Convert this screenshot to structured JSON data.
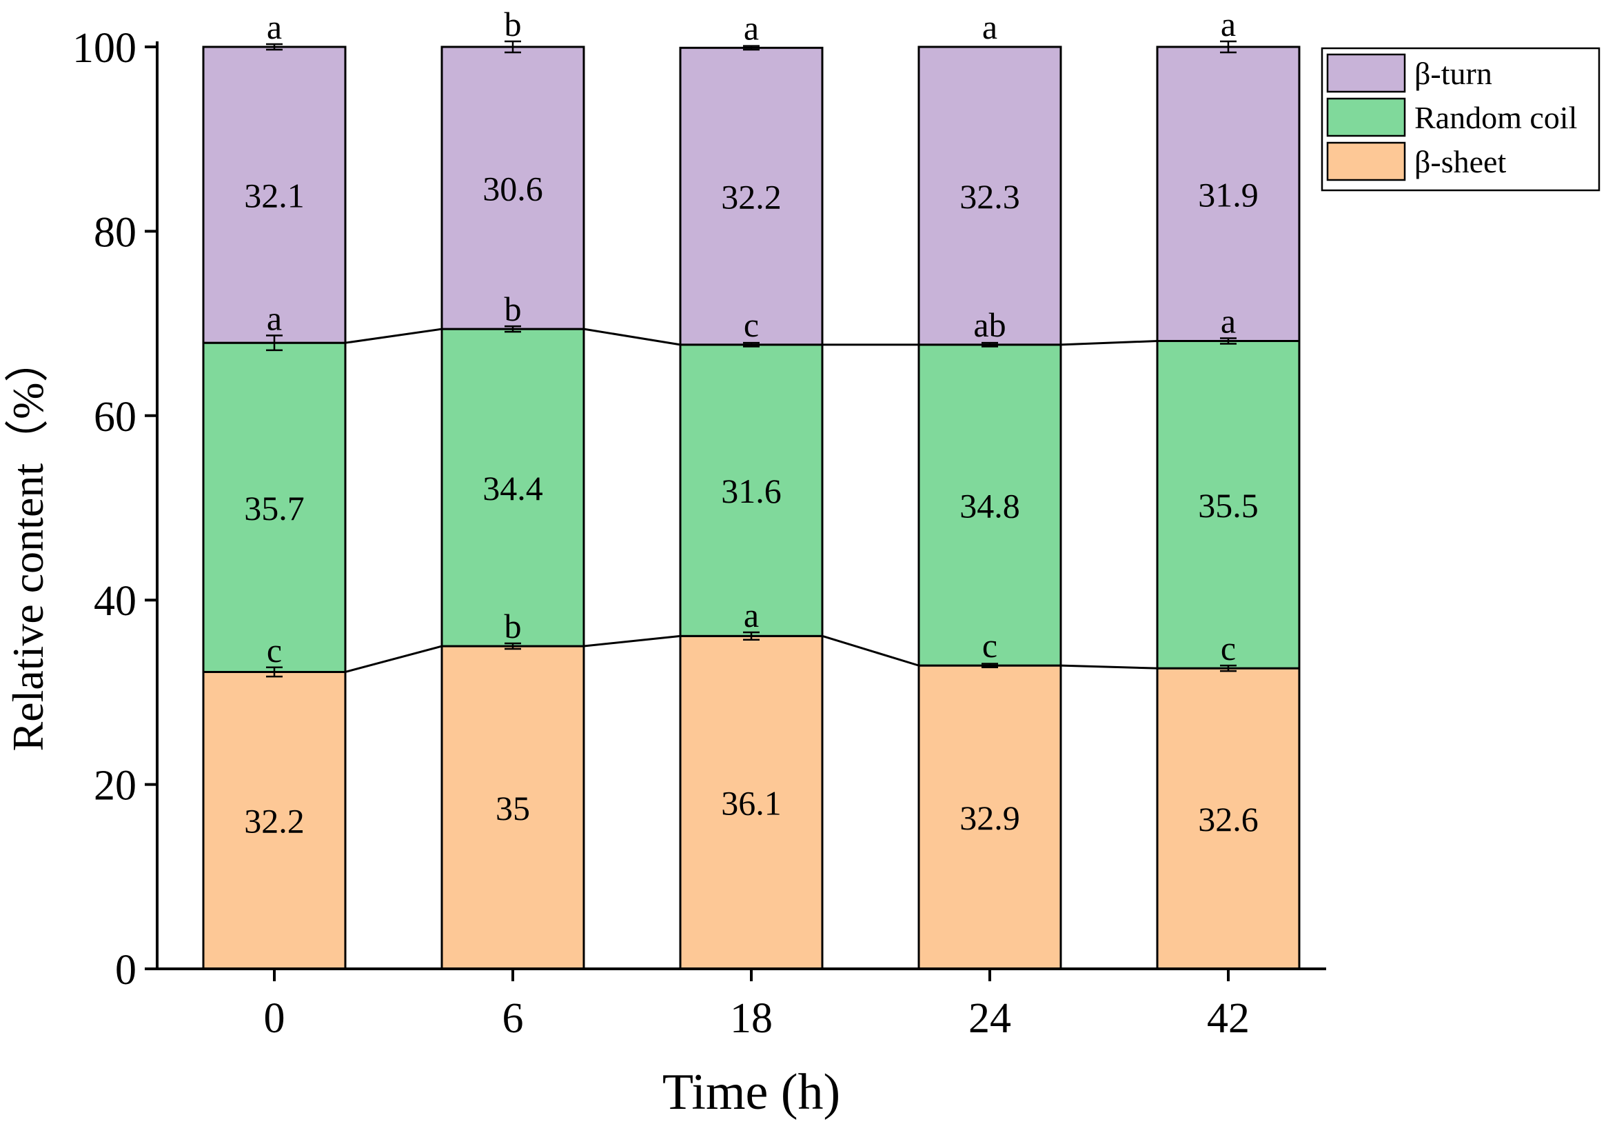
{
  "chart_data": {
    "type": "bar",
    "stacked": true,
    "xlabel": "Time (h)",
    "ylabel": "Relative content（%）",
    "ylim": [
      0,
      100
    ],
    "yticks": [
      0,
      20,
      40,
      60,
      80,
      100
    ],
    "categories": [
      "0",
      "6",
      "18",
      "24",
      "42"
    ],
    "series": [
      {
        "name": "β-sheet",
        "color": "#FDC896",
        "values": [
          32.2,
          35,
          36.1,
          32.9,
          32.6
        ],
        "labels": [
          "32.2",
          "35",
          "36.1",
          "32.9",
          "32.6"
        ],
        "letters": [
          "c",
          "b",
          "a",
          "c",
          "c"
        ],
        "errors": [
          0.5,
          0.3,
          0.4,
          0.2,
          0.3
        ]
      },
      {
        "name": "Random coil",
        "color": "#80D99B",
        "values": [
          35.7,
          34.4,
          31.6,
          34.8,
          35.5
        ],
        "labels": [
          "35.7",
          "34.4",
          "31.6",
          "34.8",
          "35.5"
        ],
        "letters": [
          "a",
          "b",
          "c",
          "ab",
          "a"
        ],
        "errors": [
          0.8,
          0.3,
          0.2,
          0.2,
          0.3
        ]
      },
      {
        "name": "β-turn",
        "color": "#C8B3D8",
        "values": [
          32.1,
          30.6,
          32.2,
          32.3,
          31.9
        ],
        "labels": [
          "32.1",
          "30.6",
          "32.2",
          "32.3",
          "31.9"
        ],
        "letters": [
          "a",
          "b",
          "a",
          "a",
          "a"
        ],
        "errors": [
          0.3,
          0.6,
          0.2,
          0.0,
          0.6
        ]
      }
    ],
    "legend": {
      "position": "top-right-outside",
      "order": [
        "β-turn",
        "Random coil",
        "β-sheet"
      ]
    }
  }
}
